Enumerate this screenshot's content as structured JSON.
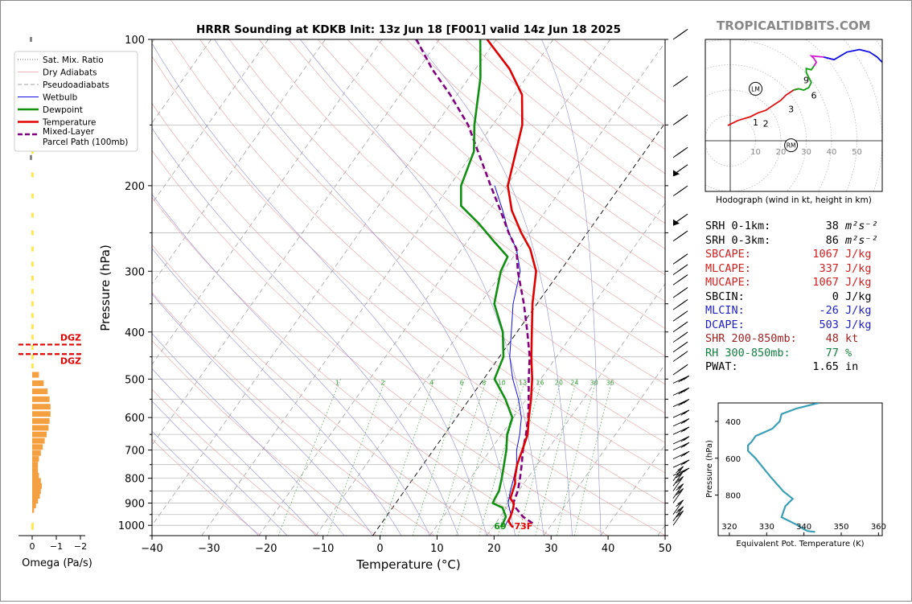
{
  "title": "HRRR Sounding at KDKB Init: 13z Jun 18 [F001] valid 14z Jun 18 2025",
  "brand": "TROPICALTIDBITS.COM",
  "colors": {
    "temperature": "#e00000",
    "dewpoint": "#109010",
    "wetbulb": "#1010e0",
    "parcel": "#800080",
    "red_text": "#d02020",
    "blue_text": "#2020c0",
    "green_text": "#108040",
    "brown_text": "#a02020",
    "omega": "#f5a040",
    "omega_light": "#ffe850",
    "hodo_seg1": "#e01010",
    "hodo_seg2": "#10a010",
    "hodo_seg3": "#d020d0",
    "hodo_seg4": "#1010e0",
    "theta_e": "#3a9fb5"
  },
  "legend": [
    "Sat. Mix. Ratio",
    "Dry Adiabats",
    "Pseudoadiabats",
    "Wetbulb",
    "Dewpoint",
    "Temperature",
    "Mixed-Layer Parcel Path (100mb)"
  ],
  "skewt": {
    "xlabel": "Temperature (°C)",
    "ylabel": "Pressure (hPa)",
    "x_ticks": [
      -40,
      -30,
      -20,
      -10,
      0,
      10,
      20,
      30,
      40,
      50
    ],
    "x_tick_labels": [
      "−40",
      "−30",
      "−20",
      "−10",
      "0",
      "10",
      "20",
      "30",
      "40",
      "50"
    ],
    "p_ticks": [
      100,
      200,
      300,
      400,
      500,
      600,
      700,
      800,
      900,
      1000
    ],
    "mix_ratio_labels": [
      "1",
      "2",
      "4",
      "6",
      "8",
      "10",
      "13",
      "16",
      "20",
      "24",
      "30",
      "36"
    ],
    "surface_label": "69",
    "surface_label_t": "73F"
  },
  "chart_data": [
    {
      "type": "line",
      "name": "skew-t",
      "temperature": [
        [
          1010,
          23.6
        ],
        [
          1000,
          23
        ],
        [
          980,
          22
        ],
        [
          960,
          21.8
        ],
        [
          940,
          21.5
        ],
        [
          920,
          21.2
        ],
        [
          900,
          20.7
        ],
        [
          880,
          19.5
        ],
        [
          850,
          19.0
        ],
        [
          820,
          18.5
        ],
        [
          800,
          17.8
        ],
        [
          750,
          16.5
        ],
        [
          700,
          15.6
        ],
        [
          650,
          14.6
        ],
        [
          600,
          12.7
        ],
        [
          550,
          10.8
        ],
        [
          500,
          8.5
        ],
        [
          450,
          5.6
        ],
        [
          400,
          2.6
        ],
        [
          350,
          -0.8
        ],
        [
          300,
          -4.2
        ],
        [
          270,
          -8.0
        ],
        [
          250,
          -11.6
        ],
        [
          225,
          -16
        ],
        [
          200,
          -19.8
        ],
        [
          150,
          -24.8
        ],
        [
          130,
          -28.6
        ],
        [
          115,
          -34
        ],
        [
          100,
          -41.6
        ]
      ],
      "dewpoint": [
        [
          1010,
          21.5
        ],
        [
          990,
          21.3
        ],
        [
          960,
          21
        ],
        [
          920,
          19.3
        ],
        [
          900,
          17
        ],
        [
          880,
          16.8
        ],
        [
          850,
          16.6
        ],
        [
          800,
          15.5
        ],
        [
          750,
          14.2
        ],
        [
          700,
          12.8
        ],
        [
          650,
          11.0
        ],
        [
          600,
          9.8
        ],
        [
          550,
          6.3
        ],
        [
          500,
          1.9
        ],
        [
          450,
          0.7
        ],
        [
          400,
          -2.5
        ],
        [
          350,
          -7.5
        ],
        [
          300,
          -10.4
        ],
        [
          280,
          -11.0
        ],
        [
          260,
          -15.4
        ],
        [
          240,
          -20
        ],
        [
          220,
          -25.5
        ],
        [
          200,
          -28.0
        ],
        [
          170,
          -30
        ],
        [
          150,
          -33.2
        ],
        [
          120,
          -38
        ],
        [
          100,
          -42.8
        ]
      ],
      "wetbulb": [
        [
          1000,
          22
        ],
        [
          950,
          21.6
        ],
        [
          900,
          19.7
        ],
        [
          850,
          18.6
        ],
        [
          800,
          17.6
        ],
        [
          750,
          16.4
        ],
        [
          700,
          14.6
        ],
        [
          650,
          13.2
        ],
        [
          600,
          11.4
        ],
        [
          550,
          8.6
        ],
        [
          500,
          5.1
        ],
        [
          450,
          1.8
        ],
        [
          400,
          -1.0
        ],
        [
          350,
          -4.2
        ],
        [
          300,
          -7.0
        ],
        [
          270,
          -10.4
        ],
        [
          250,
          -13.8
        ],
        [
          225,
          -17.6
        ],
        [
          200,
          -22.1
        ]
      ],
      "parcel": [
        [
          990,
          26.5
        ],
        [
          960,
          24
        ],
        [
          920,
          21.6
        ],
        [
          900,
          20.6
        ],
        [
          850,
          19.9
        ],
        [
          800,
          18.7
        ],
        [
          750,
          17.3
        ],
        [
          700,
          15.7
        ],
        [
          650,
          14.3
        ],
        [
          600,
          12.6
        ],
        [
          550,
          10.4
        ],
        [
          500,
          7.9
        ],
        [
          450,
          5.3
        ],
        [
          400,
          1.8
        ],
        [
          350,
          -2.3
        ],
        [
          300,
          -7.4
        ],
        [
          270,
          -10.4
        ],
        [
          250,
          -13.8
        ],
        [
          225,
          -18.0
        ],
        [
          200,
          -22.8
        ],
        [
          150,
          -34.3
        ],
        [
          130,
          -41.2
        ],
        [
          115,
          -47.6
        ],
        [
          100,
          -54.0
        ]
      ]
    },
    {
      "type": "line",
      "name": "hodograph",
      "title": "Hodograph (wind in kt, height in km)",
      "ring_labels": [
        "10",
        "20",
        "30",
        "40",
        "50"
      ],
      "points": [
        [
          1,
          -1,
          3
        ],
        [
          2,
          10,
          10
        ],
        [
          3,
          17,
          15
        ],
        [
          4,
          22,
          20
        ],
        [
          5,
          25,
          25
        ],
        [
          6,
          27,
          30
        ],
        [
          7,
          27,
          35
        ],
        [
          8,
          30,
          40
        ],
        [
          9,
          40,
          50
        ],
        [
          10,
          48,
          48
        ],
        [
          11,
          50,
          49
        ],
        [
          12,
          55,
          45
        ]
      ],
      "km_labels": [
        {
          "t": "1",
          "u": 10,
          "v": 10
        },
        {
          "t": "2",
          "u": 14,
          "v": 9
        },
        {
          "t": "3",
          "u": 24,
          "v": 17
        },
        {
          "t": "6",
          "u": 33,
          "v": 24
        },
        {
          "t": "9",
          "u": 30,
          "v": 32
        }
      ],
      "storm_markers": [
        {
          "t": "LM",
          "u": 10,
          "v": 28
        },
        {
          "t": "RM",
          "u": 24,
          "v": -2
        }
      ]
    },
    {
      "type": "line",
      "name": "theta-e profile",
      "xlabel": "Equivalent Pot. Temperature (K)",
      "ylabel": "Pressure (hPa)",
      "x_ticks": [
        "320",
        "330",
        "340",
        "350",
        "360"
      ],
      "y_ticks": [
        "400",
        "600",
        "800"
      ],
      "values": [
        [
          300,
          344
        ],
        [
          330,
          338
        ],
        [
          360,
          334
        ],
        [
          400,
          333.5
        ],
        [
          440,
          331.5
        ],
        [
          480,
          327
        ],
        [
          510,
          326
        ],
        [
          530,
          325
        ],
        [
          560,
          325
        ],
        [
          600,
          327
        ],
        [
          650,
          329
        ],
        [
          700,
          331
        ],
        [
          780,
          334.5
        ],
        [
          820,
          337
        ],
        [
          860,
          335
        ],
        [
          920,
          334
        ],
        [
          960,
          338
        ],
        [
          985,
          340
        ],
        [
          995,
          341
        ],
        [
          1000,
          343
        ]
      ]
    },
    {
      "type": "bar",
      "name": "omega",
      "xlabel": "Omega (Pa/s)",
      "x_ticks": [
        "0",
        "−1",
        "−2"
      ],
      "dgz_label": "DGZ",
      "dgz_top": 415,
      "dgz_bottom": 465,
      "values": [
        [
          490,
          -0.14
        ],
        [
          510,
          -0.24
        ],
        [
          530,
          -0.32
        ],
        [
          550,
          -0.36
        ],
        [
          570,
          -0.38
        ],
        [
          590,
          -0.38
        ],
        [
          610,
          -0.36
        ],
        [
          630,
          -0.34
        ],
        [
          650,
          -0.3
        ],
        [
          670,
          -0.26
        ],
        [
          690,
          -0.22
        ],
        [
          710,
          -0.18
        ],
        [
          730,
          -0.14
        ],
        [
          750,
          -0.12
        ],
        [
          770,
          -0.12
        ],
        [
          790,
          -0.14
        ],
        [
          810,
          -0.18
        ],
        [
          830,
          -0.2
        ],
        [
          850,
          -0.18
        ],
        [
          870,
          -0.16
        ],
        [
          890,
          -0.12
        ],
        [
          910,
          -0.08
        ],
        [
          930,
          -0.04
        ]
      ]
    }
  ],
  "params": [
    {
      "label": "SRH 0-1km:",
      "value": "38",
      "unit": "m²s⁻²",
      "color": "#000"
    },
    {
      "label": "SRH 0-3km:",
      "value": "86",
      "unit": "m²s⁻²",
      "color": "#000"
    },
    {
      "label": "SBCAPE:",
      "value": "1067",
      "unit": "J/kg",
      "color": "#d02020"
    },
    {
      "label": "MLCAPE:",
      "value": "337",
      "unit": "J/kg",
      "color": "#d02020"
    },
    {
      "label": "MUCAPE:",
      "value": "1067",
      "unit": "J/kg",
      "color": "#d02020"
    },
    {
      "label": "SBCIN:",
      "value": "0",
      "unit": "J/kg",
      "color": "#000"
    },
    {
      "label": "MLCIN:",
      "value": "-26",
      "unit": "J/kg",
      "color": "#2020c0"
    },
    {
      "label": "DCAPE:",
      "value": "503",
      "unit": "J/kg",
      "color": "#2020c0"
    },
    {
      "label": "SHR 200-850mb:",
      "value": "48",
      "unit": "kt",
      "color": "#a02020"
    },
    {
      "label": "RH 300-850mb:",
      "value": "77",
      "unit": "%",
      "color": "#108040"
    },
    {
      "label": "PWAT:",
      "value": "1.65",
      "unit": "in",
      "color": "#000"
    }
  ]
}
